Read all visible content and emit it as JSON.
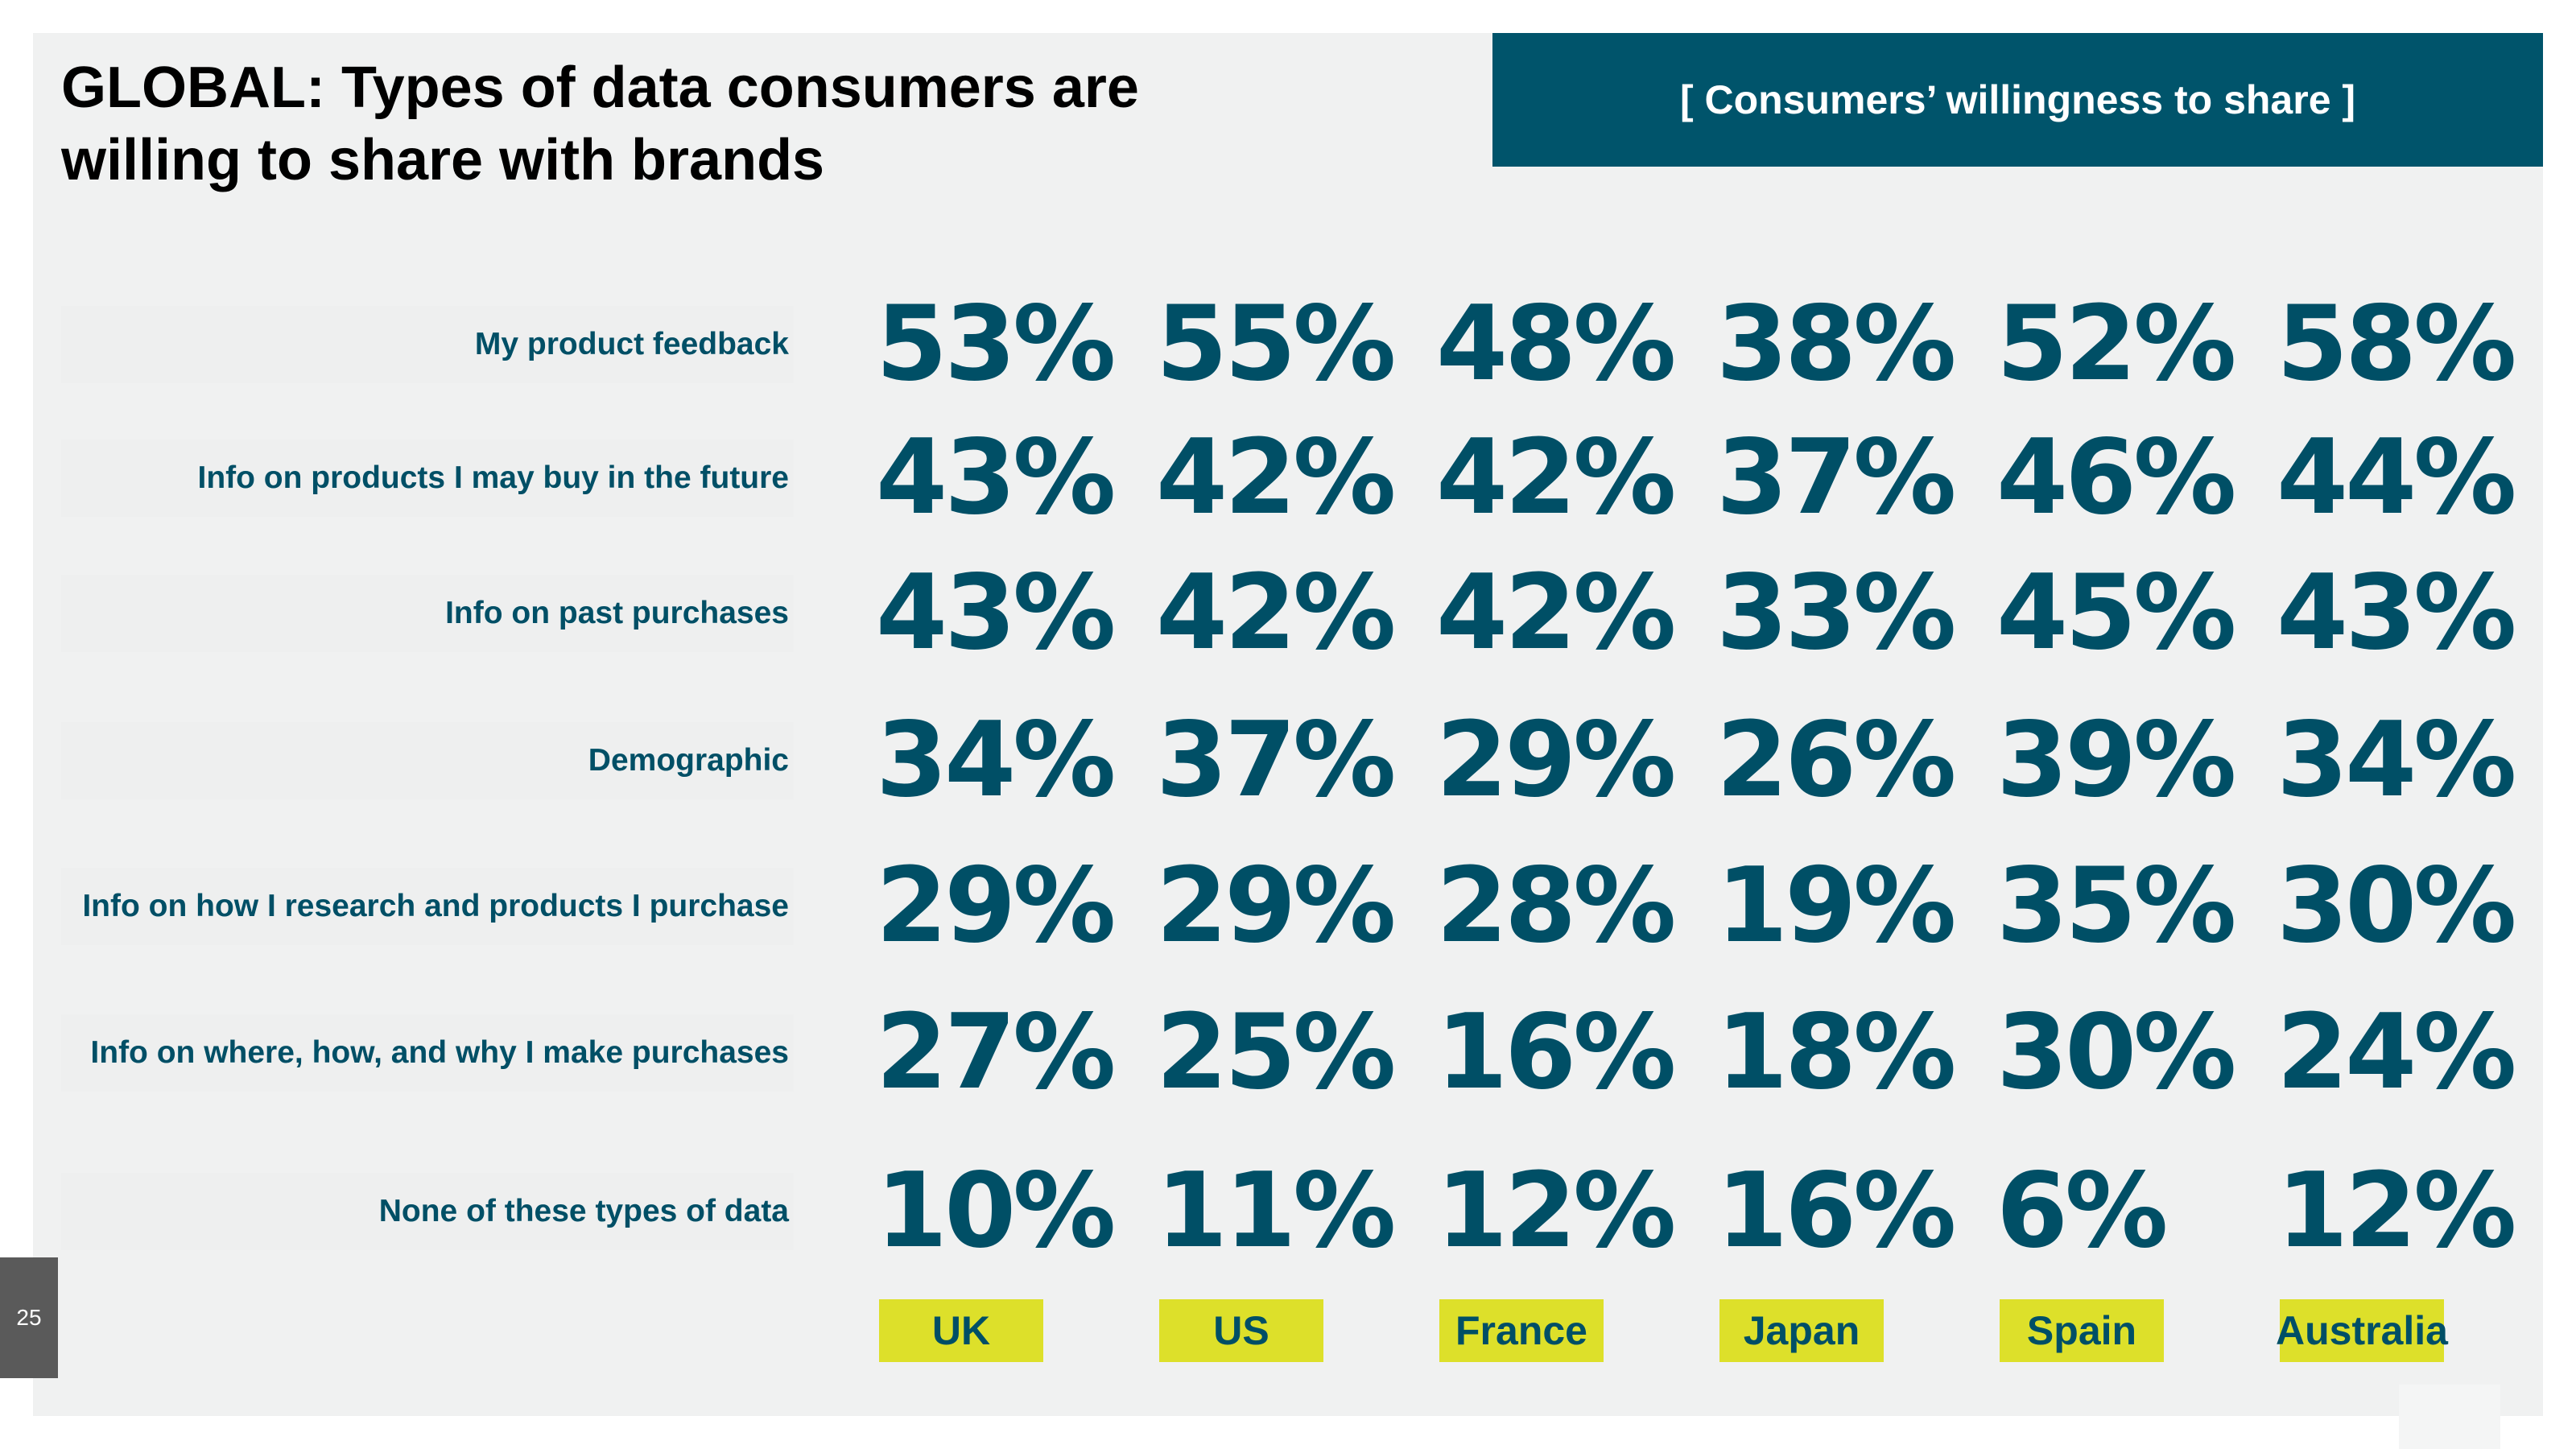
{
  "title": "GLOBAL: Types of data consumers are willing to share with brands",
  "title_lines": [
    "GLOBAL: Types of data consumers are",
    "willing to share with brands"
  ],
  "banner": "[ Consumers’ willingness to share ]",
  "page_number": "25",
  "colors": {
    "value_text": "#004f66",
    "banner_bg": "#00546b",
    "country_bg": "#dde02a"
  },
  "chart_data": {
    "type": "table",
    "title": "GLOBAL: Types of data consumers are willing to share with brands",
    "subtitle": "[ Consumers’ willingness to share ]",
    "columns": [
      "UK",
      "US",
      "France",
      "Japan",
      "Spain",
      "Australia"
    ],
    "rows": [
      {
        "label": "My product feedback",
        "values": [
          "53%",
          "55%",
          "48%",
          "38%",
          "52%",
          "58%"
        ]
      },
      {
        "label": "Info on products I may buy in the future",
        "values": [
          "43%",
          "42%",
          "42%",
          "37%",
          "46%",
          "44%"
        ]
      },
      {
        "label": "Info on past purchases",
        "values": [
          "43%",
          "42%",
          "42%",
          "33%",
          "45%",
          "43%"
        ]
      },
      {
        "label": "Demographic",
        "values": [
          "34%",
          "37%",
          "29%",
          "26%",
          "39%",
          "34%"
        ]
      },
      {
        "label": "Info on how I research and products I purchase",
        "values": [
          "29%",
          "29%",
          "28%",
          "19%",
          "35%",
          "30%"
        ]
      },
      {
        "label": "Info on where, how, and why I make purchases",
        "values": [
          "27%",
          "25%",
          "16%",
          "18%",
          "30%",
          "24%"
        ]
      },
      {
        "label": "None of these types of data",
        "values": [
          "10%",
          "11%",
          "12%",
          "16%",
          "6%",
          "12%"
        ]
      }
    ]
  }
}
